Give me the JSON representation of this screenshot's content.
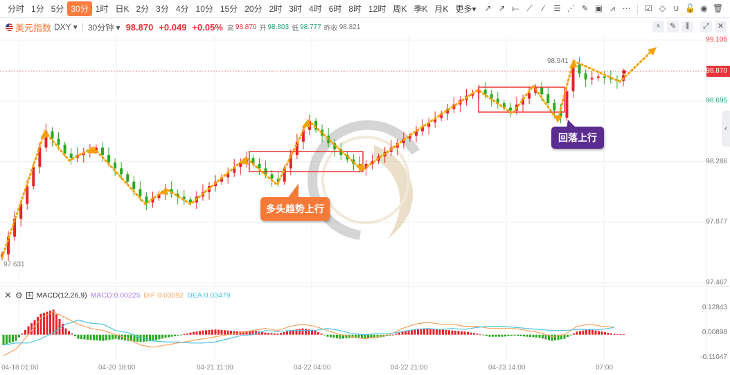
{
  "toolbar": {
    "periods": [
      "分时",
      "1分",
      "5分",
      "30分",
      "1时",
      "日K",
      "2分",
      "3分",
      "4分",
      "10分",
      "15分",
      "20分",
      "2时",
      "3时",
      "4时",
      "6时",
      "8时",
      "12时",
      "周K",
      "季K",
      "月K",
      "更多▾"
    ],
    "active": "30分",
    "tools": [
      "trend-line-icon",
      "ray-icon",
      "horizontal-line-icon",
      "parallel-channel-icon",
      "pen-icon",
      "fib-icon",
      "fan-icon",
      "brush-icon",
      "image-icon",
      "chart-pattern-icon",
      "more-icon",
      "note-icon",
      "eraser-icon",
      "magnet-icon",
      "lock-icon",
      "eye-icon",
      "trash-icon"
    ],
    "tool_glyphs": [
      "↗",
      "↗",
      "⟝",
      "⟋",
      "∕",
      "☰",
      "⋰",
      "✎",
      "▣",
      "⩘",
      "⋯",
      "☑",
      "◇",
      "∪",
      "🔓",
      "◉",
      "🗑"
    ]
  },
  "info": {
    "name": "美元指数",
    "symbol": "DXY ▾",
    "interval": "30分钟 ▾",
    "price": "98.870",
    "change": "+0.049",
    "change_pct": "+0.05%",
    "high_label": "高",
    "high": "98.870",
    "open_label": "开",
    "open": "98.803",
    "low_label": "低",
    "low": "98.777",
    "prev_label": "昨收",
    "prev": "98.821"
  },
  "window_buttons": [
    "⩡",
    "✎",
    "⫼",
    "⤢",
    "✕"
  ],
  "annotations": {
    "callout1": "多头趋势上行",
    "callout2": "回落上行",
    "max_label": "98.941",
    "min_label": "97.631"
  },
  "colors": {
    "up": "#e8232b",
    "down": "#2aaa22",
    "arrow": "#f5a20a",
    "box": "#ee3333",
    "callout1": "#f57a38",
    "callout2": "#5b2d91",
    "dif": "#f9a25a",
    "dea": "#4cc3e3",
    "macd": "#a67ee6"
  },
  "macd": {
    "title": "MACD(12,26,9)",
    "macd": "MACD:0.00225",
    "dif": "DIF:0.03592",
    "dea": "DEA:0.03479"
  },
  "chart_data": {
    "type": "candlestick",
    "price_axis": {
      "ticks": [
        "99.105",
        "98.695",
        "98.286",
        "97.877",
        "97.467"
      ],
      "current": "98.870",
      "range": [
        97.467,
        99.105
      ]
    },
    "x_ticks": [
      "04-18 01:00",
      "04-20 18:00",
      "04-21 11:00",
      "04-22 04:00",
      "04-22 21:00",
      "04-23 14:00",
      "07:00"
    ],
    "closes": [
      97.66,
      97.78,
      97.9,
      98.0,
      98.12,
      98.25,
      98.38,
      98.49,
      98.44,
      98.4,
      98.34,
      98.31,
      98.33,
      98.35,
      98.36,
      98.38,
      98.33,
      98.28,
      98.24,
      98.2,
      98.15,
      98.1,
      98.05,
      98.01,
      98.04,
      98.07,
      98.1,
      98.07,
      98.05,
      98.03,
      98.01,
      98.05,
      98.08,
      98.12,
      98.15,
      98.18,
      98.21,
      98.25,
      98.28,
      98.31,
      98.27,
      98.24,
      98.2,
      98.17,
      98.15,
      98.24,
      98.33,
      98.42,
      98.5,
      98.56,
      98.5,
      98.46,
      98.41,
      98.37,
      98.33,
      98.3,
      98.27,
      98.24,
      98.27,
      98.29,
      98.32,
      98.35,
      98.38,
      98.41,
      98.44,
      98.46,
      98.49,
      98.52,
      98.55,
      98.58,
      98.61,
      98.64,
      98.67,
      98.7,
      98.73,
      98.75,
      98.77,
      98.74,
      98.71,
      98.68,
      98.65,
      98.63,
      98.67,
      98.71,
      98.75,
      98.79,
      98.74,
      98.68,
      98.63,
      98.58,
      98.76,
      98.94,
      98.88,
      98.84,
      98.85,
      98.86,
      98.85,
      98.84,
      98.83,
      98.87
    ],
    "macd_axis": {
      "ticks": [
        "0.12843",
        "0.00898",
        "-0.11047"
      ],
      "range": [
        -0.11047,
        0.12843
      ]
    },
    "macd_hist": [
      -0.05,
      -0.03,
      0.04,
      0.1,
      0.12,
      0.03,
      -0.02,
      -0.025,
      -0.03,
      -0.02,
      -0.03,
      -0.035,
      -0.03,
      -0.015,
      -0.005,
      0.01,
      0.02,
      0.025,
      0.02,
      0.015,
      0.02,
      0.01,
      0.005,
      0.02,
      0.03,
      0.02,
      -0.01,
      -0.02,
      -0.015,
      -0.02,
      -0.015,
      -0.005,
      0.015,
      0.025,
      0.03,
      0.025,
      0.02,
      0.015,
      0.005,
      -0.01,
      -0.01,
      -0.005,
      -0.01,
      -0.015,
      -0.03,
      -0.02,
      0.015,
      0.025,
      0.015,
      0.003
    ],
    "dif": [
      -0.1,
      -0.07,
      0,
      0.08,
      0.11,
      0.08,
      0.05,
      0.03,
      0.02,
      0,
      -0.02,
      -0.05,
      -0.06,
      -0.05,
      -0.04,
      -0.03,
      -0.02,
      -0.01,
      0,
      0.01,
      0.02,
      0.03,
      0.02,
      0.04,
      0.05,
      0.04,
      0.02,
      0,
      -0.01,
      -0.02,
      -0.01,
      0,
      0.03,
      0.05,
      0.06,
      0.05,
      0.05,
      0.04,
      0.04,
      0.03,
      0.03,
      0.03,
      0.02,
      0.01,
      -0.01,
      0,
      0.04,
      0.05,
      0.04,
      0.036
    ],
    "dea": [
      -0.05,
      -0.04,
      -0.04,
      -0.02,
      0.01,
      0.05,
      0.07,
      0.055,
      0.05,
      0.02,
      0.01,
      -0.015,
      -0.03,
      -0.035,
      -0.035,
      -0.04,
      -0.04,
      -0.035,
      -0.02,
      -0.005,
      0,
      0.02,
      0.015,
      0.02,
      0.02,
      0.02,
      0.03,
      0.02,
      0.005,
      0,
      0.005,
      0.005,
      0.015,
      0.025,
      0.03,
      0.025,
      0.03,
      0.025,
      0.035,
      0.04,
      0.04,
      0.035,
      0.03,
      0.025,
      0.02,
      0.02,
      0.025,
      0.025,
      0.025,
      0.035
    ]
  }
}
